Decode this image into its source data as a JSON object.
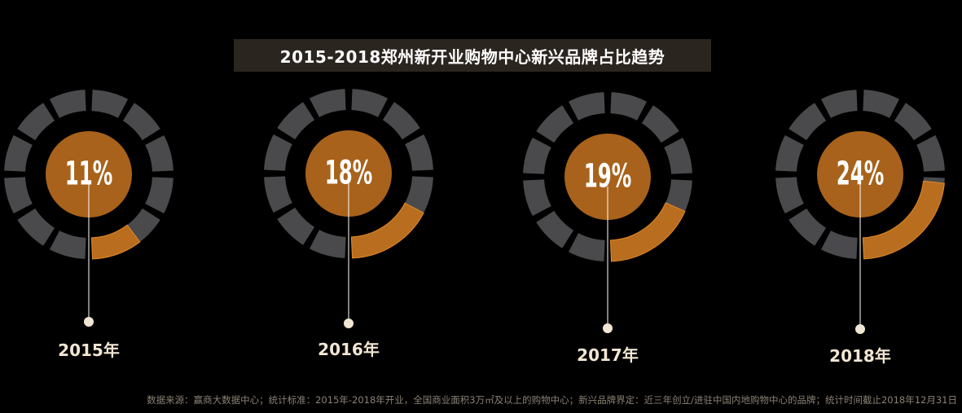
{
  "title": "2015-2018郑州新开业购物中心新兴品牌占比趋势",
  "footnote": "数据来源：赢商大数据中心；统计标准：2015年-2018年开业，全国商业面积3万㎡及以上的购物中心；新兴品牌界定：近三年创立/进驻中国内地购物中心的品牌；统计时间截止2018年12月31日",
  "colors": {
    "background": "#000000",
    "highlight": "#b86d1f",
    "highlight_outline": "#e38a25",
    "ring_gray": "#4a4a4c",
    "center": "#a8621b",
    "label": "#f1e6d3"
  },
  "chart_data": {
    "type": "donut",
    "unit": "%",
    "series": [
      {
        "year": "2015年",
        "value": 11,
        "label": "11%"
      },
      {
        "year": "2016年",
        "value": 18,
        "label": "18%"
      },
      {
        "year": "2017年",
        "value": 19,
        "label": "19%"
      },
      {
        "year": "2018年",
        "value": 24,
        "label": "24%"
      }
    ]
  }
}
